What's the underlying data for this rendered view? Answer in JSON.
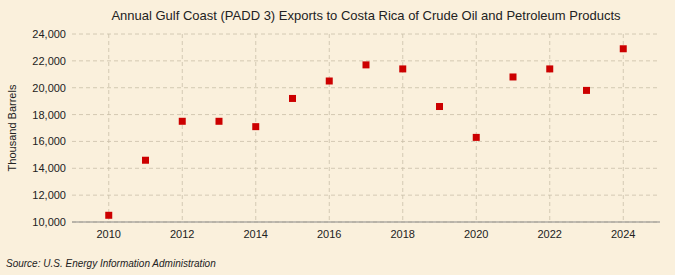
{
  "chart_data": {
    "type": "scatter",
    "title": "Annual Gulf Coast (PADD 3) Exports to Costa Rica of Crude Oil and Petroleum Products",
    "ylabel": "Thousand Barrels",
    "annotations": [
      "Source: U.S. Energy Information Administration"
    ],
    "x": [
      2010,
      2011,
      2012,
      2013,
      2014,
      2015,
      2016,
      2017,
      2018,
      2019,
      2020,
      2021,
      2022,
      2023,
      2024
    ],
    "values": [
      10500,
      14600,
      17500,
      17500,
      17100,
      19200,
      20500,
      21700,
      21400,
      18600,
      16300,
      20800,
      21400,
      19800,
      22900
    ],
    "color": "#cc0000",
    "marker": "square",
    "xlim": [
      2009,
      2025
    ],
    "xticks": [
      2010,
      2012,
      2014,
      2016,
      2018,
      2020,
      2022,
      2024
    ],
    "ylim": [
      10000,
      24000
    ],
    "yticks": [
      {
        "value": 10000,
        "label": "10,000"
      },
      {
        "value": 12000,
        "label": "12,000"
      },
      {
        "value": 14000,
        "label": "14,000"
      },
      {
        "value": 16000,
        "label": "16,000"
      },
      {
        "value": 18000,
        "label": "18,000"
      },
      {
        "value": 20000,
        "label": "20,000"
      },
      {
        "value": 22000,
        "label": "22,000"
      },
      {
        "value": 24000,
        "label": "24,000"
      }
    ],
    "grid": true
  }
}
